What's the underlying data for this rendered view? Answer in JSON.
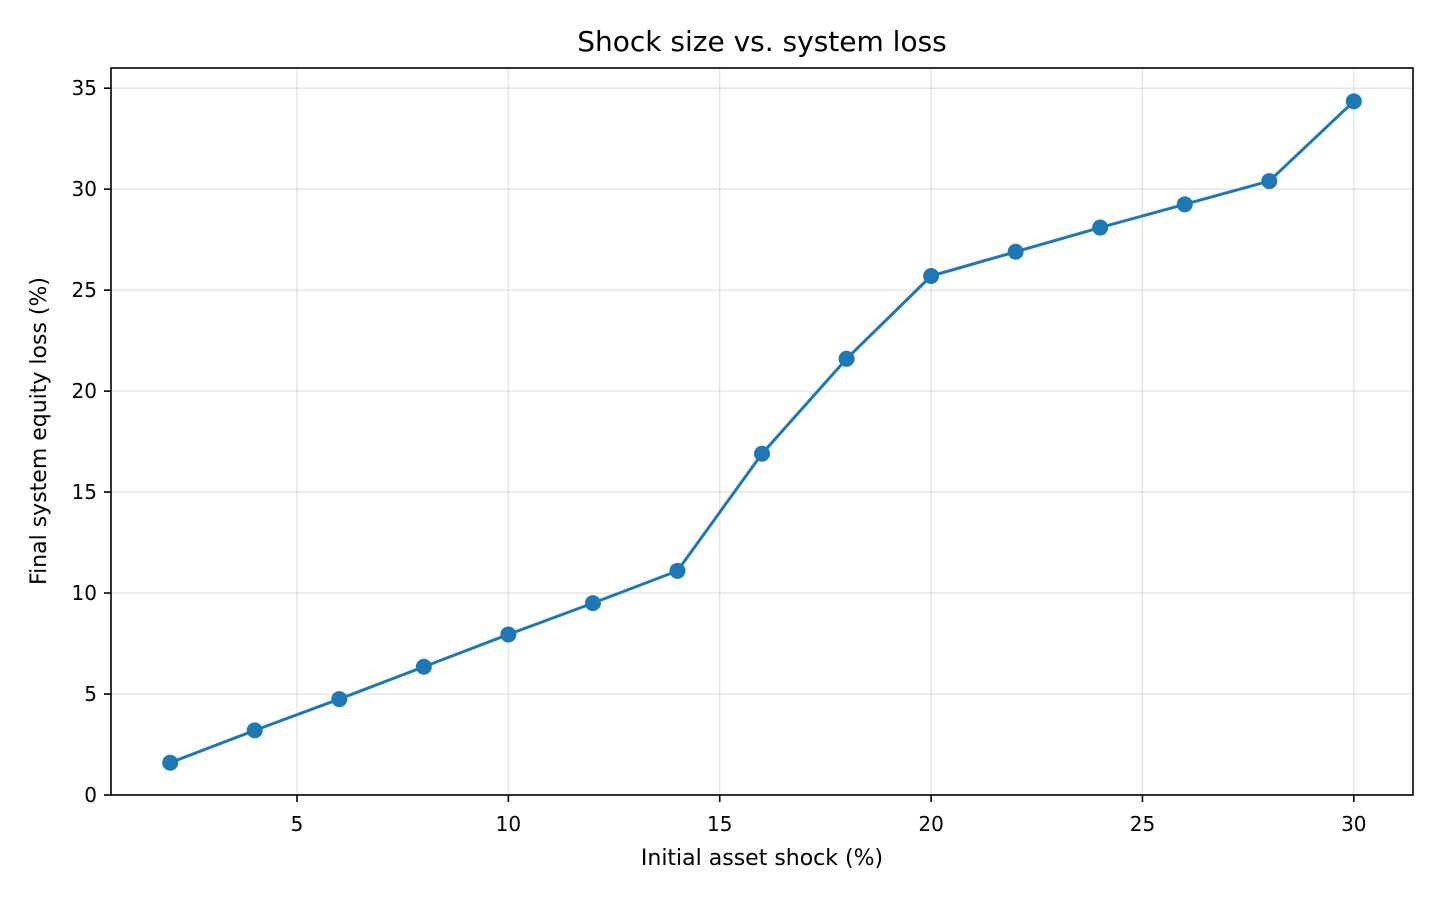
{
  "chart_data": {
    "type": "line",
    "title": "Shock size vs. system loss",
    "xlabel": "Initial asset shock (%)",
    "ylabel": "Final system equity loss (%)",
    "xlim": [
      0.6,
      31.4
    ],
    "ylim": [
      0,
      36
    ],
    "x_ticks": [
      5,
      10,
      15,
      20,
      25,
      30
    ],
    "y_ticks": [
      0,
      5,
      10,
      15,
      20,
      25,
      30,
      35
    ],
    "grid": true,
    "legend": "none",
    "color": "#1f77b4",
    "series": [
      {
        "marker": "circle",
        "points": [
          {
            "x": 2,
            "y": 1.6
          },
          {
            "x": 4,
            "y": 3.2
          },
          {
            "x": 6,
            "y": 4.75
          },
          {
            "x": 8,
            "y": 6.35
          },
          {
            "x": 10,
            "y": 7.95
          },
          {
            "x": 12,
            "y": 9.5
          },
          {
            "x": 14,
            "y": 11.1
          },
          {
            "x": 16,
            "y": 16.9
          },
          {
            "x": 18,
            "y": 21.6
          },
          {
            "x": 20,
            "y": 25.7
          },
          {
            "x": 22,
            "y": 26.9
          },
          {
            "x": 24,
            "y": 28.1
          },
          {
            "x": 26,
            "y": 29.25
          },
          {
            "x": 28,
            "y": 30.4
          },
          {
            "x": 30,
            "y": 34.35
          }
        ]
      }
    ]
  }
}
